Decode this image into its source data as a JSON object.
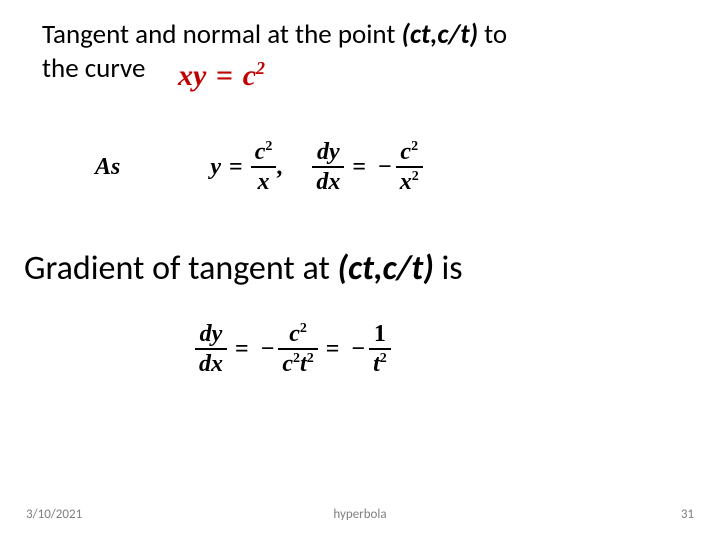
{
  "heading": {
    "prefix": "Tangent and normal at the point ",
    "point": "(ct,c/t)",
    "suffix1": " to",
    "line2_prefix": "the curve"
  },
  "curve_eq": {
    "lhs": "xy",
    "eq": "=",
    "rhs_base": "c",
    "rhs_exp": "2"
  },
  "as_label": "As",
  "eq1": {
    "y": "y",
    "eq": "=",
    "num": "c",
    "num_exp": "2",
    "den": "x",
    "comma": ","
  },
  "eq2": {
    "dy": "dy",
    "dx": "dx",
    "eq": "=",
    "minus": "−",
    "num": "c",
    "num_exp": "2",
    "den": "x",
    "den_exp": "2"
  },
  "gradient": {
    "prefix": "Gradient of tangent at ",
    "point": "(ct,c/t)",
    "suffix": " is"
  },
  "eq3": {
    "dy": "dy",
    "dx": "dx",
    "eq1": "=",
    "minus1": "−",
    "num1_base": "c",
    "num1_exp": "2",
    "den1_c": "c",
    "den1_cexp": "2",
    "den1_t": "t",
    "den1_texp": "2",
    "eq2": "=",
    "minus2": "−",
    "num2": "1",
    "den2_base": "t",
    "den2_exp": "2"
  },
  "footer": {
    "date": "3/10/2021",
    "name": "hyperbola",
    "page": "31"
  }
}
